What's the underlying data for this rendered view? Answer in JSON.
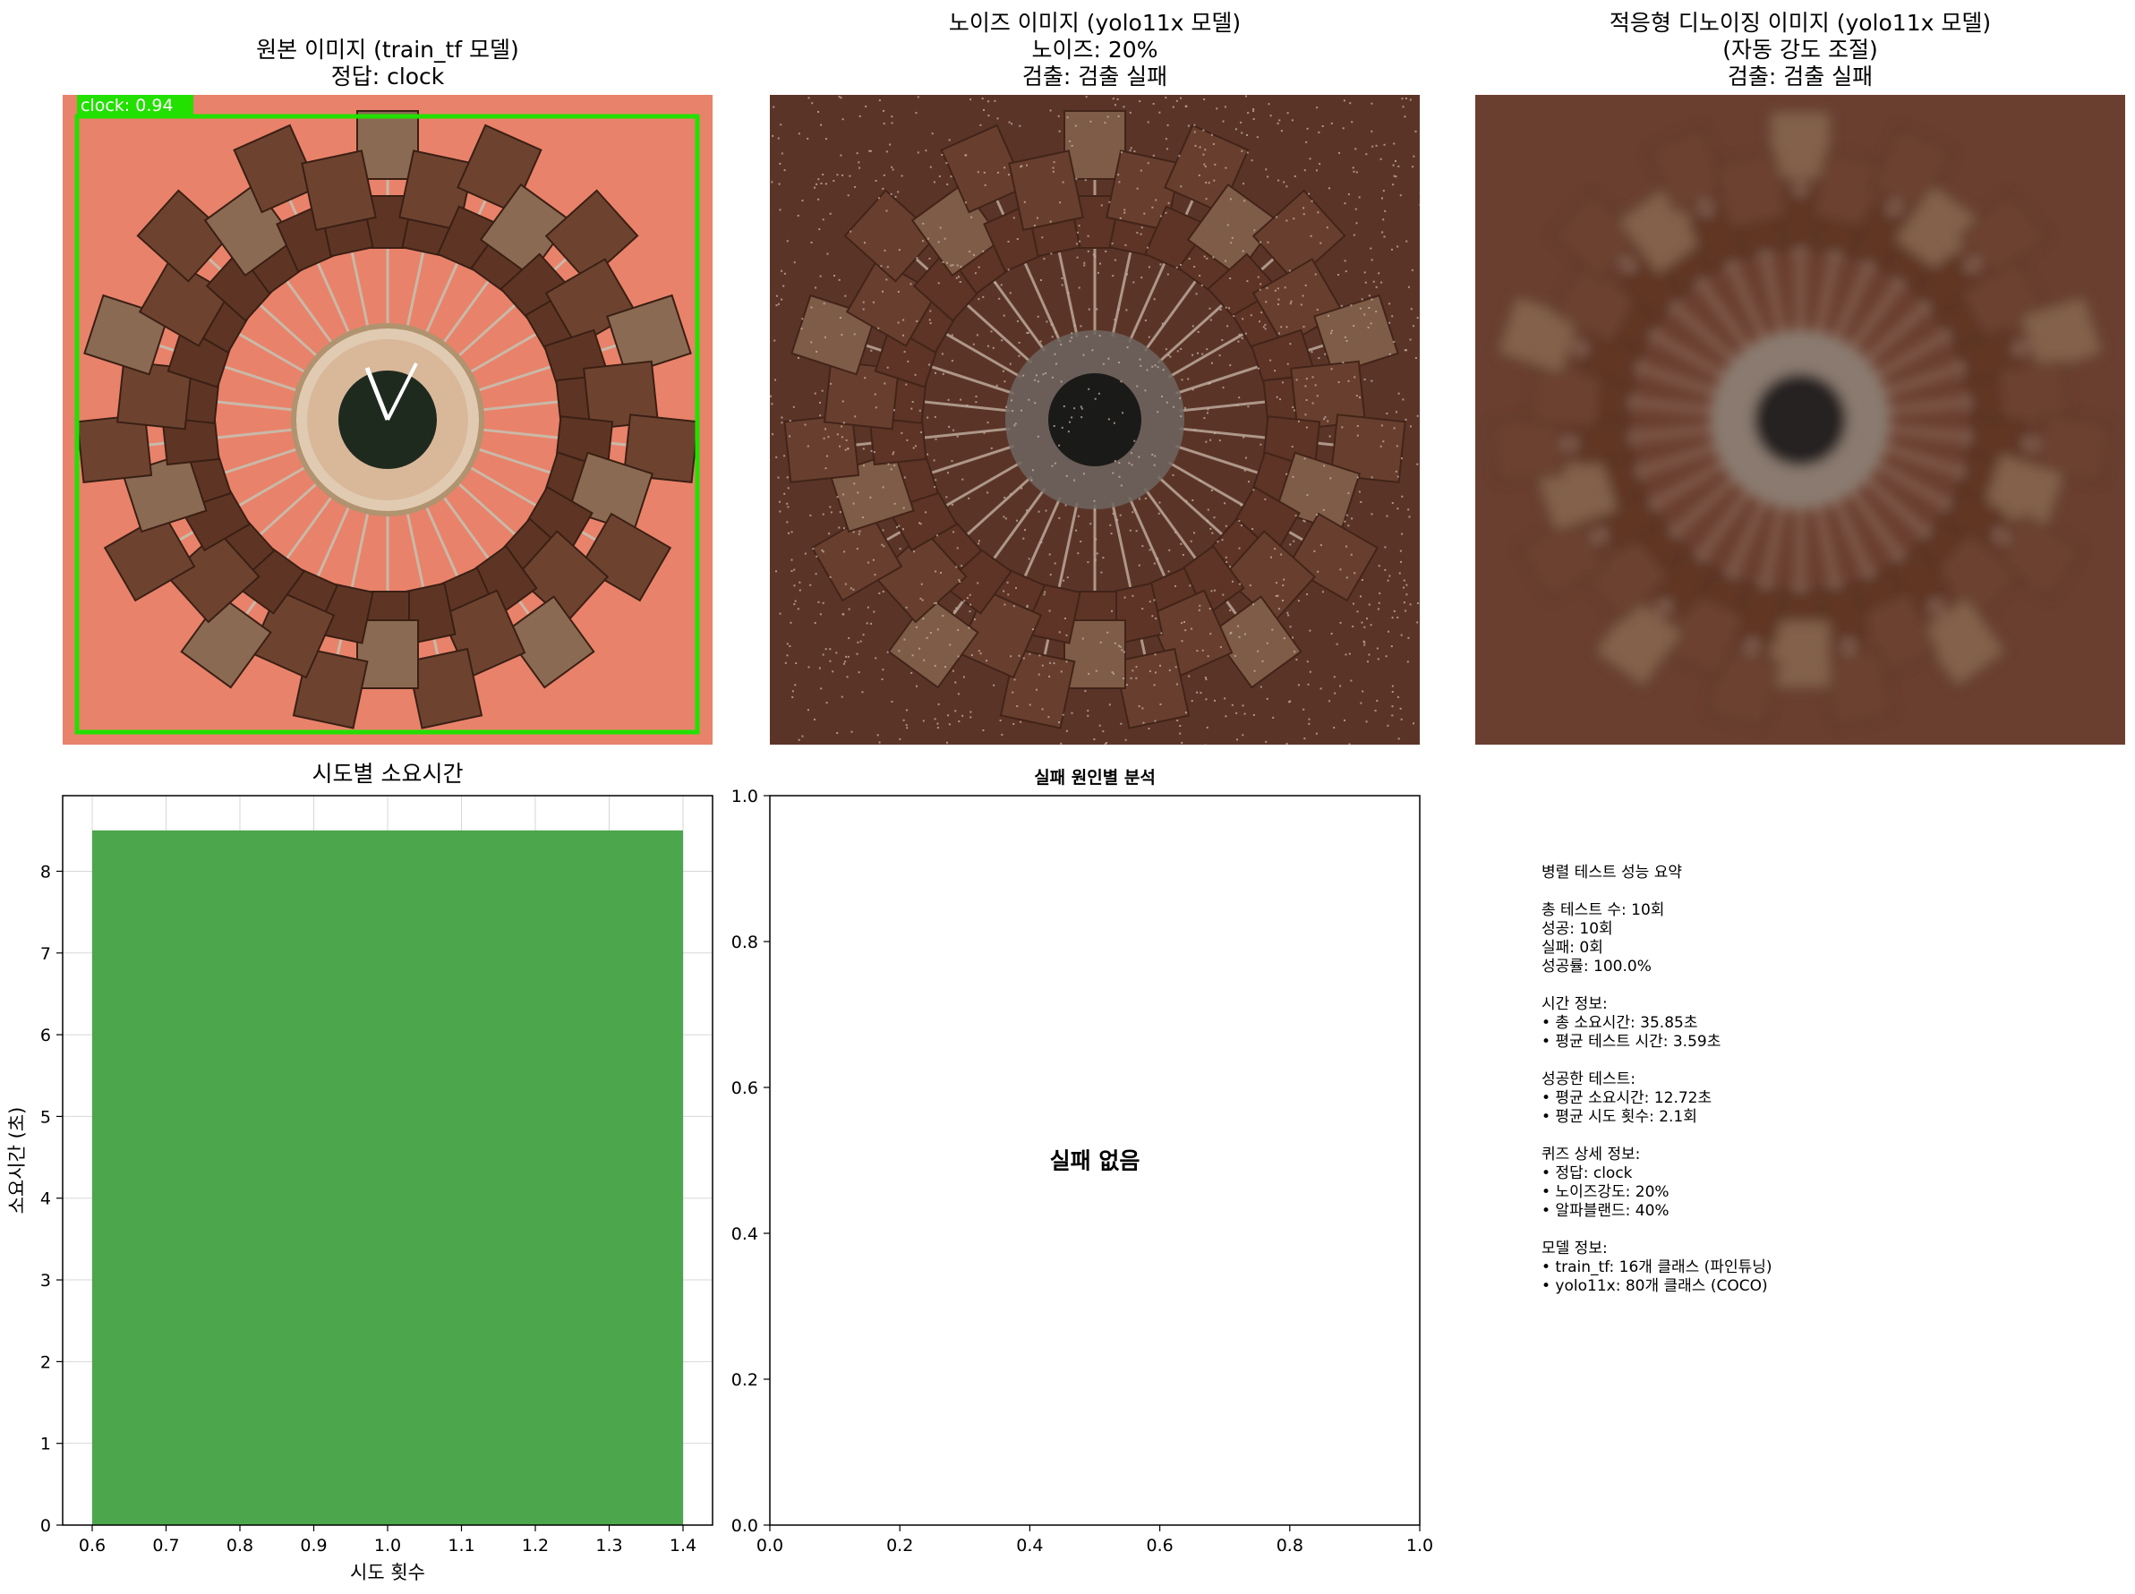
{
  "panels": {
    "original": {
      "title_lines": [
        "원본 이미지 (train_tf 모델)",
        "정답: clock"
      ],
      "detection_label": "clock: 0.94",
      "box_color": "#22e000"
    },
    "noisy": {
      "title_lines": [
        "노이즈 이미지 (yolo11x 모델)",
        "노이즈: 20%",
        "검출: 검출 실패"
      ]
    },
    "denoised": {
      "title_lines": [
        "적응형 디노이징 이미지 (yolo11x 모델)",
        "(자동 강도 조절)",
        "검출: 검출 실패"
      ]
    }
  },
  "chart_data": [
    {
      "type": "bar",
      "title": "시도별 소요시간",
      "xlabel": "시도 횟수",
      "ylabel": "소요시간 (초)",
      "x": [
        1
      ],
      "values": [
        8.5
      ],
      "bar_width": 0.8,
      "xlim": [
        0.56,
        1.44
      ],
      "ylim": [
        0,
        8.925
      ],
      "xticks": [
        0.6,
        0.7,
        0.8,
        0.9,
        1.0,
        1.1,
        1.2,
        1.3,
        1.4
      ],
      "yticks": [
        0,
        1,
        2,
        3,
        4,
        5,
        6,
        7,
        8
      ],
      "grid": true,
      "color": "#4ca64c"
    },
    {
      "type": "bar",
      "title": "실패 원인별 분석",
      "annotation": "실패 없음",
      "xlim": [
        0,
        1
      ],
      "ylim": [
        0,
        1
      ],
      "xticks": [
        0.0,
        0.2,
        0.4,
        0.6,
        0.8,
        1.0
      ],
      "yticks": [
        0.0,
        0.2,
        0.4,
        0.6,
        0.8,
        1.0
      ],
      "grid": false
    }
  ],
  "summary": {
    "lines": [
      "병렬 테스트 성능 요약",
      "",
      "총 테스트 수: 10회",
      "성공: 10회",
      "실패: 0회",
      "성공률: 100.0%",
      "",
      "시간 정보:",
      "• 총 소요시간: 35.85초",
      "• 평균 테스트 시간: 3.59초",
      "",
      "성공한 테스트:",
      "• 평균 소요시간: 12.72초",
      "• 평균 시도 횟수: 2.1회",
      "",
      "퀴즈 상세 정보:",
      "• 정답: clock",
      "• 노이즈강도: 20%",
      "• 알파블랜드: 40%",
      "",
      "모델 정보:",
      "• train_tf: 16개 클래스 (파인튜닝)",
      "• yolo11x: 80개 클래스 (COCO)"
    ]
  }
}
